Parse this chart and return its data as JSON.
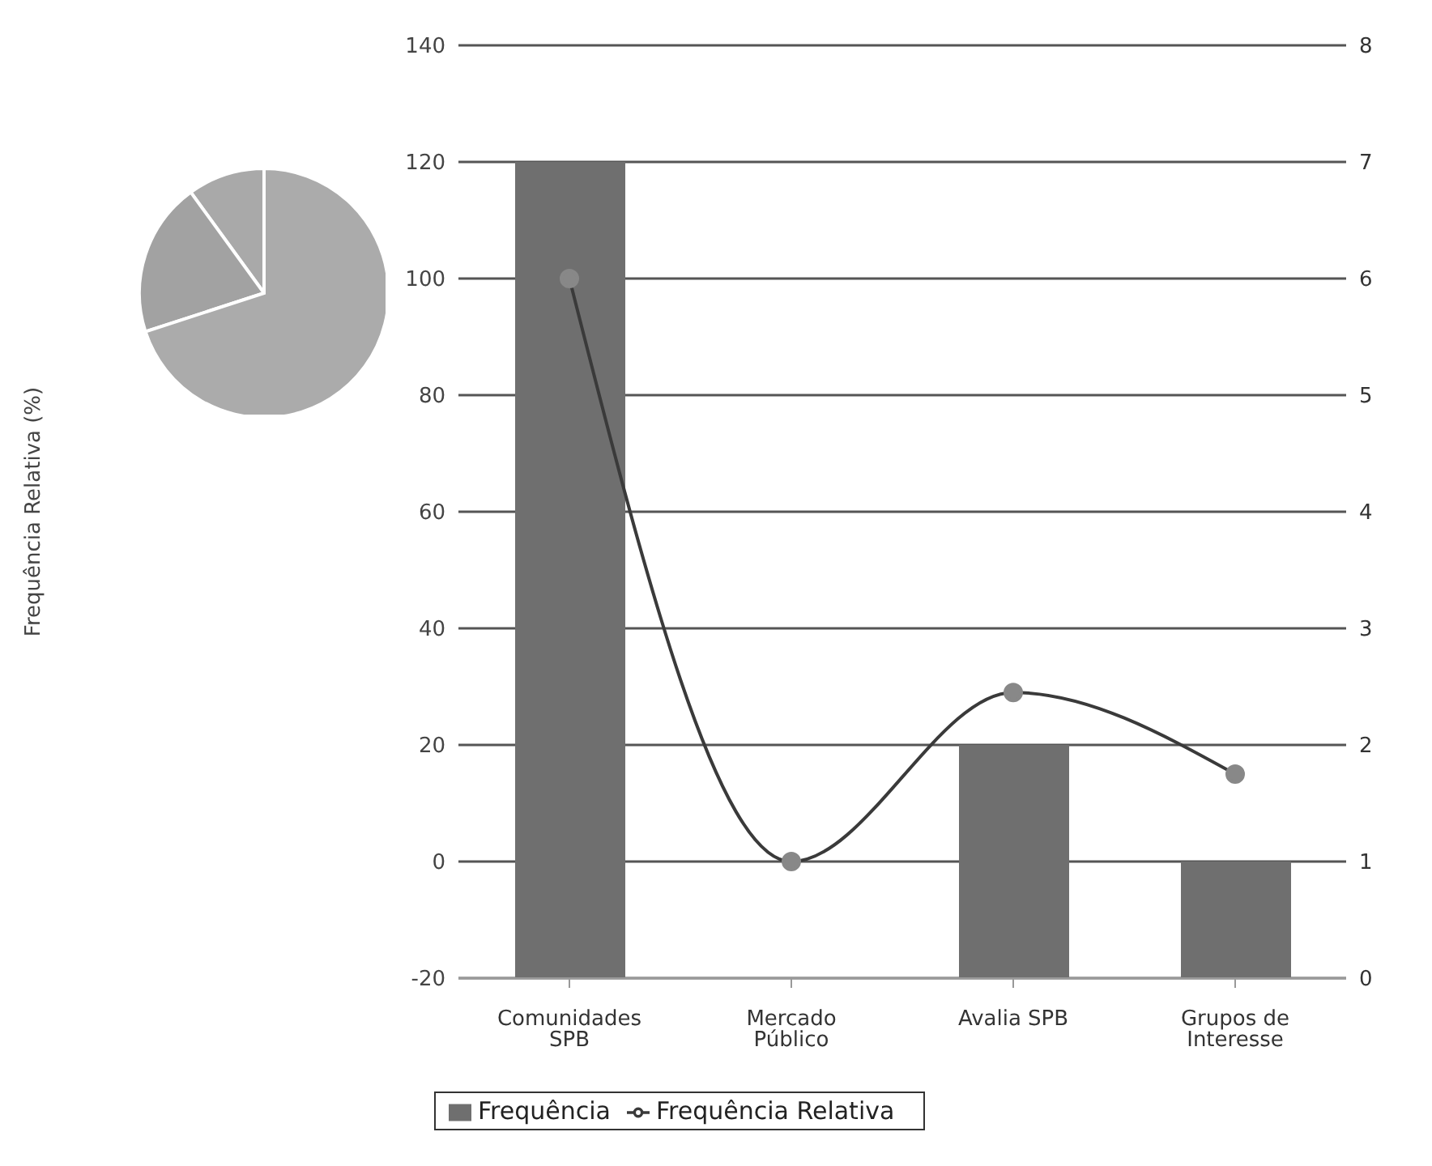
{
  "chart_data": [
    {
      "type": "bar",
      "categories": [
        "Comunidades SPB",
        "Mercado Público",
        "Avalia SPB",
        "Grupos de Interesse"
      ],
      "series": [
        {
          "name": "Frequência",
          "type": "bar",
          "axis": "y2",
          "color": "#6f6f6f",
          "values": [
            7,
            0,
            2,
            1
          ]
        },
        {
          "name": "Frequência Relativa",
          "type": "line",
          "axis": "y",
          "color": "#3a3a3a",
          "values": [
            100,
            0,
            29,
            15
          ]
        }
      ],
      "ylabel": "Frequência Relativa (%)",
      "ylim": [
        -20,
        140
      ],
      "yticks": [
        -20,
        0,
        20,
        40,
        60,
        80,
        100,
        120,
        140
      ],
      "y2lim": [
        0,
        8
      ],
      "y2ticks": [
        0,
        1,
        2,
        3,
        4,
        5,
        6,
        7,
        8
      ],
      "grid": "y",
      "legend": "bottom",
      "marker": "circle"
    },
    {
      "type": "pie",
      "categories": [
        null,
        null,
        null
      ],
      "values": [
        10,
        20,
        70
      ],
      "colors": [
        "#a9a9a9",
        "#a2a2a2",
        "#ababab"
      ]
    }
  ]
}
